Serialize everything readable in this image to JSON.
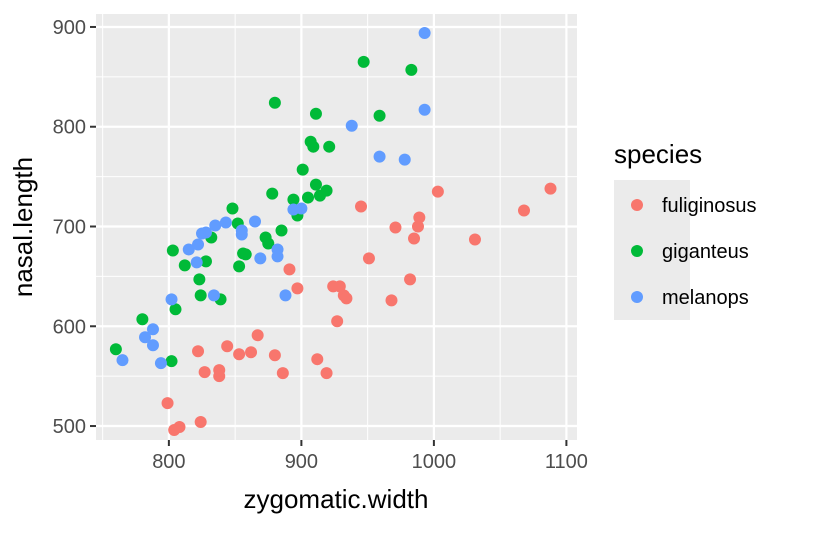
{
  "chart_data": {
    "type": "scatter",
    "title": "",
    "xlabel": "zygomatic.width",
    "ylabel": "nasal.length",
    "xlim": [
      745,
      1108
    ],
    "ylim": [
      486,
      913
    ],
    "xticks": [
      800,
      900,
      1000,
      1100
    ],
    "yticks": [
      500,
      600,
      700,
      800,
      900
    ],
    "grid": true,
    "legend": {
      "title": "species",
      "placement": "right"
    },
    "series": [
      {
        "name": "fuliginosus",
        "color": "#F8766D",
        "points": [
          [
            799,
            523
          ],
          [
            804,
            496
          ],
          [
            808,
            499
          ],
          [
            824,
            504
          ],
          [
            822,
            575
          ],
          [
            844,
            580
          ],
          [
            853,
            572
          ],
          [
            862,
            574
          ],
          [
            867,
            591
          ],
          [
            880,
            571
          ],
          [
            827,
            554
          ],
          [
            838,
            556
          ],
          [
            838,
            550
          ],
          [
            886,
            553
          ],
          [
            912,
            567
          ],
          [
            919,
            553
          ],
          [
            927,
            605
          ],
          [
            891,
            657
          ],
          [
            897,
            638
          ],
          [
            924,
            640
          ],
          [
            929,
            640
          ],
          [
            932,
            631
          ],
          [
            934,
            628
          ],
          [
            945,
            720
          ],
          [
            951,
            668
          ],
          [
            968,
            626
          ],
          [
            971,
            699
          ],
          [
            982,
            647
          ],
          [
            985,
            688
          ],
          [
            988,
            700
          ],
          [
            989,
            709
          ],
          [
            1003,
            735
          ],
          [
            1031,
            687
          ],
          [
            1068,
            716
          ],
          [
            1088,
            738
          ]
        ]
      },
      {
        "name": "giganteus",
        "color": "#00BA38",
        "points": [
          [
            760,
            577
          ],
          [
            780,
            607
          ],
          [
            802,
            565
          ],
          [
            805,
            617
          ],
          [
            803,
            676
          ],
          [
            812,
            661
          ],
          [
            823,
            647
          ],
          [
            824,
            631
          ],
          [
            839,
            627
          ],
          [
            828,
            665
          ],
          [
            832,
            689
          ],
          [
            848,
            718
          ],
          [
            852,
            703
          ],
          [
            856,
            673
          ],
          [
            858,
            672
          ],
          [
            853,
            660
          ],
          [
            873,
            689
          ],
          [
            875,
            683
          ],
          [
            885,
            696
          ],
          [
            878,
            733
          ],
          [
            880,
            824
          ],
          [
            894,
            727
          ],
          [
            897,
            711
          ],
          [
            905,
            729
          ],
          [
            911,
            742
          ],
          [
            914,
            731
          ],
          [
            919,
            736
          ],
          [
            907,
            785
          ],
          [
            909,
            780
          ],
          [
            911,
            813
          ],
          [
            921,
            780
          ],
          [
            901,
            757
          ],
          [
            947,
            865
          ],
          [
            959,
            811
          ],
          [
            983,
            857
          ]
        ]
      },
      {
        "name": "melanops",
        "color": "#619CFF",
        "points": [
          [
            765,
            566
          ],
          [
            782,
            589
          ],
          [
            788,
            597
          ],
          [
            788,
            581
          ],
          [
            794,
            563
          ],
          [
            802,
            627
          ],
          [
            815,
            677
          ],
          [
            821,
            664
          ],
          [
            822,
            682
          ],
          [
            825,
            693
          ],
          [
            828,
            694
          ],
          [
            835,
            701
          ],
          [
            843,
            704
          ],
          [
            855,
            696
          ],
          [
            855,
            692
          ],
          [
            834,
            631
          ],
          [
            865,
            705
          ],
          [
            869,
            668
          ],
          [
            882,
            677
          ],
          [
            882,
            670
          ],
          [
            888,
            631
          ],
          [
            894,
            717
          ],
          [
            900,
            718
          ],
          [
            938,
            801
          ],
          [
            959,
            770
          ],
          [
            978,
            767
          ],
          [
            993,
            894
          ],
          [
            993,
            817
          ]
        ]
      }
    ]
  }
}
